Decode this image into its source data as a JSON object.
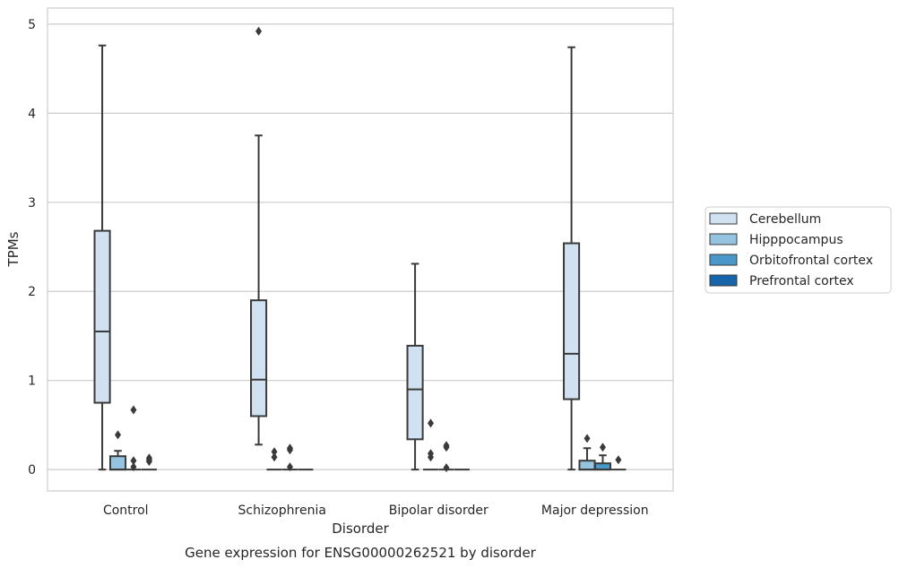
{
  "caption": "Gene expression for ENSG00000262521 by disorder",
  "chart_data": {
    "type": "box",
    "xlabel": "Disorder",
    "ylabel": "TPMs",
    "ylim": [
      -0.24,
      5.18
    ],
    "yticks": [
      0,
      1,
      2,
      3,
      4,
      5
    ],
    "grid": true,
    "legend_position": "right",
    "categories": [
      "Control",
      "Schizophrenia",
      "Bipolar disorder",
      "Major depression"
    ],
    "series": [
      {
        "name": "Cerebellum",
        "color": "#d0e1f2",
        "boxes": [
          {
            "whisker_low": 0,
            "q1": 0.75,
            "median": 1.55,
            "q3": 2.68,
            "whisker_high": 4.76,
            "outliers": []
          },
          {
            "whisker_low": 0.28,
            "q1": 0.6,
            "median": 1.01,
            "q3": 1.9,
            "whisker_high": 3.75,
            "outliers": [
              4.92
            ]
          },
          {
            "whisker_low": 0,
            "q1": 0.34,
            "median": 0.9,
            "q3": 1.39,
            "whisker_high": 2.31,
            "outliers": []
          },
          {
            "whisker_low": 0,
            "q1": 0.79,
            "median": 1.3,
            "q3": 2.54,
            "whisker_high": 4.74,
            "outliers": []
          }
        ]
      },
      {
        "name": "Hipppocampus",
        "color": "#94c4df",
        "boxes": [
          {
            "whisker_low": 0,
            "q1": 0,
            "median": 0,
            "q3": 0.15,
            "whisker_high": 0.21,
            "outliers": [
              0.39
            ]
          },
          {
            "whisker_low": 0,
            "q1": 0,
            "median": 0,
            "q3": 0,
            "whisker_high": 0,
            "outliers": [
              0.14,
              0.2
            ]
          },
          {
            "whisker_low": 0,
            "q1": 0,
            "median": 0,
            "q3": 0,
            "whisker_high": 0,
            "outliers": [
              0.14,
              0.18,
              0.52
            ]
          },
          {
            "whisker_low": 0,
            "q1": 0,
            "median": 0,
            "q3": 0.1,
            "whisker_high": 0.24,
            "outliers": [
              0.35
            ]
          }
        ]
      },
      {
        "name": "Orbitofrontal cortex",
        "color": "#4a98c9",
        "boxes": [
          {
            "whisker_low": 0,
            "q1": 0,
            "median": 0,
            "q3": 0,
            "whisker_high": 0,
            "outliers": [
              0.03,
              0.1,
              0.67
            ]
          },
          {
            "whisker_low": 0,
            "q1": 0,
            "median": 0,
            "q3": 0,
            "whisker_high": 0,
            "outliers": [
              0.03,
              0.22,
              0.24
            ]
          },
          {
            "whisker_low": 0,
            "q1": 0,
            "median": 0,
            "q3": 0,
            "whisker_high": 0,
            "outliers": [
              0.02,
              0.25,
              0.27
            ]
          },
          {
            "whisker_low": 0,
            "q1": 0,
            "median": 0,
            "q3": 0.07,
            "whisker_high": 0.16,
            "outliers": [
              0.25
            ]
          }
        ]
      },
      {
        "name": "Prefrontal cortex",
        "color": "#1764ab",
        "boxes": [
          {
            "whisker_low": 0,
            "q1": 0,
            "median": 0,
            "q3": 0,
            "whisker_high": 0,
            "outliers": [
              0.09,
              0.11,
              0.13
            ]
          },
          {
            "whisker_low": 0,
            "q1": 0,
            "median": 0,
            "q3": 0,
            "whisker_high": 0,
            "outliers": []
          },
          {
            "whisker_low": 0,
            "q1": 0,
            "median": 0,
            "q3": 0,
            "whisker_high": 0,
            "outliers": []
          },
          {
            "whisker_low": 0,
            "q1": 0,
            "median": 0,
            "q3": 0,
            "whisker_high": 0,
            "outliers": [
              0.11
            ]
          }
        ]
      }
    ]
  }
}
